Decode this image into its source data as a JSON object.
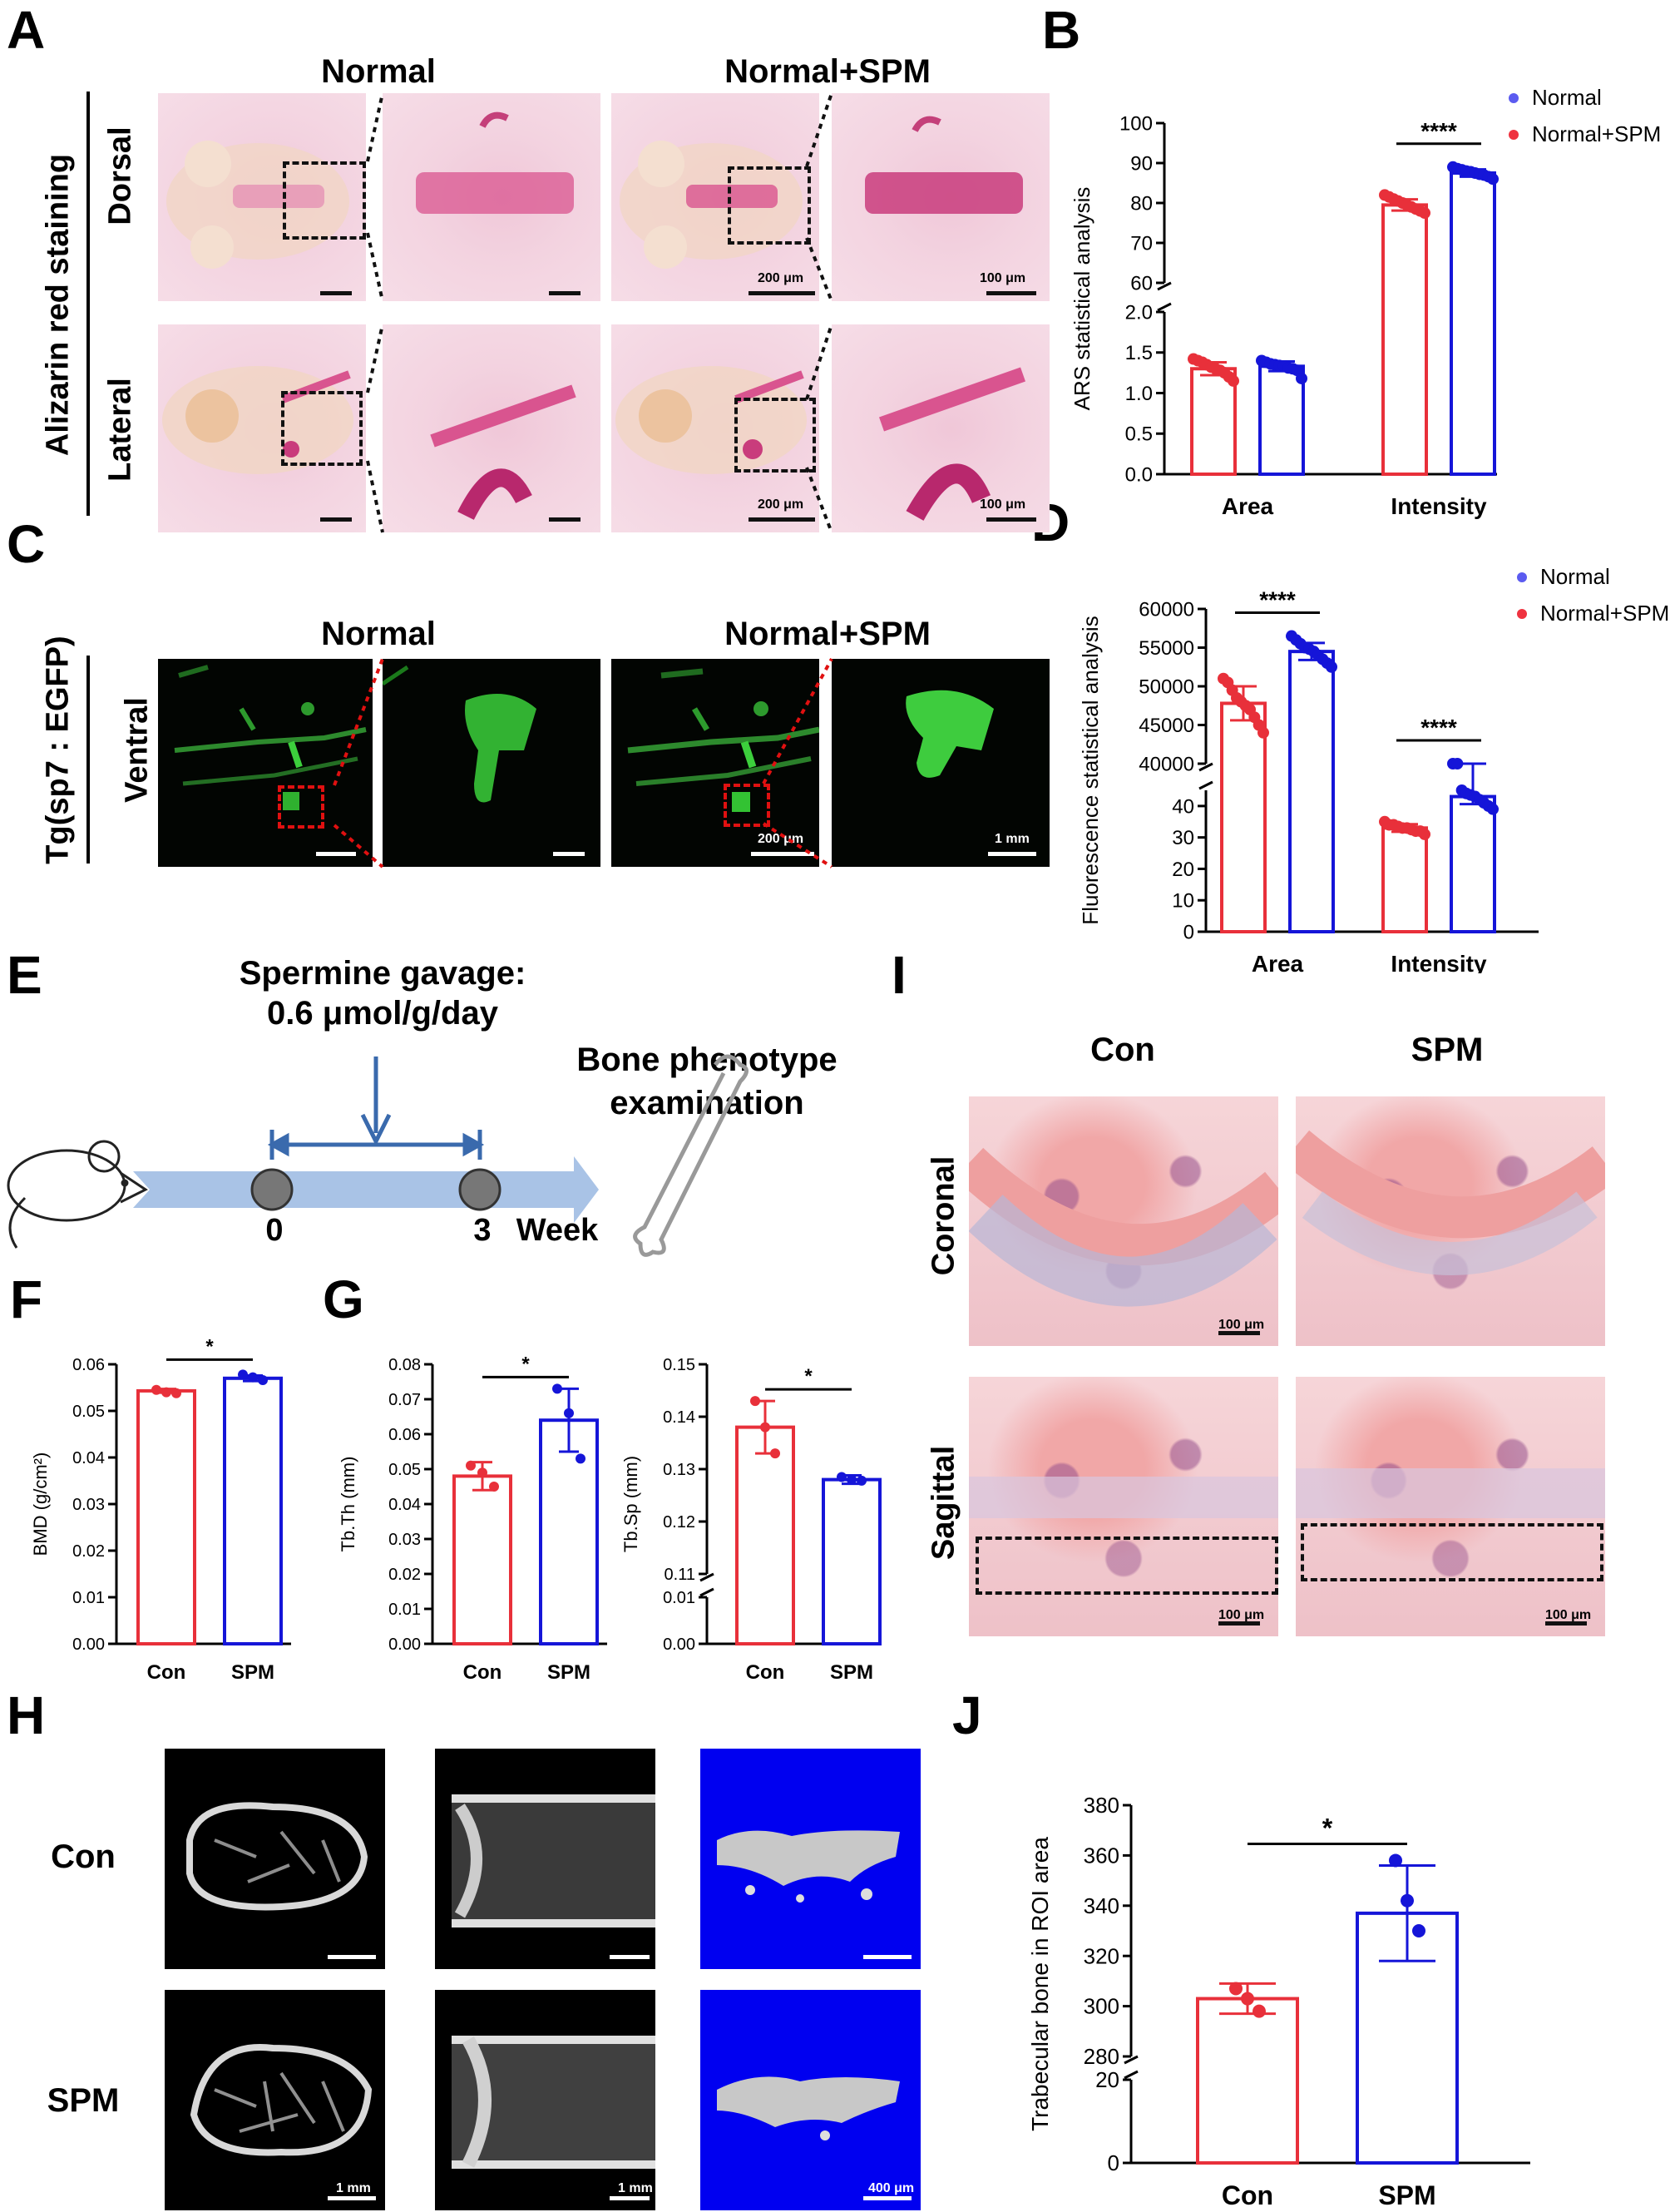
{
  "panels": {
    "A": "A",
    "B": "B",
    "C": "C",
    "D": "D",
    "E": "E",
    "F": "F",
    "G": "G",
    "H": "H",
    "I": "I",
    "J": "J"
  },
  "panel_a": {
    "col_normal": "Normal",
    "col_spm": "Normal+SPM",
    "row_side": "Alizarin red staining",
    "row_dorsal": "Dorsal",
    "row_lateral": "Lateral",
    "scale_200": "200 μm",
    "scale_100": "100 μm"
  },
  "panel_c": {
    "col_normal": "Normal",
    "col_spm": "Normal+SPM",
    "row_side": "Tg(sp7 : EGFP)",
    "row_ventral": "Ventral",
    "scale_200": "200 μm",
    "scale_1mm": "1 mm"
  },
  "panel_e": {
    "gavage_line1": "Spermine gavage:",
    "gavage_line2": "0.6 μmol/g/day",
    "exam_line1": "Bone phenotype",
    "exam_line2": "examination",
    "t0": "0",
    "t3": "3",
    "unit": "Week"
  },
  "panel_h": {
    "row_con": "Con",
    "row_spm": "SPM",
    "scale_1mm": "1 mm",
    "scale_400": "400 μm"
  },
  "panel_i": {
    "col_con": "Con",
    "col_spm": "SPM",
    "row_coronal": "Coronal",
    "row_sagittal": "Sagittal",
    "scale_100": "100 μm"
  },
  "colors": {
    "red": "#e8303a",
    "blue": "#1515d8",
    "legend_blue": "#5b5bf0",
    "legend_red": "#ef3340"
  },
  "chart_data": [
    {
      "id": "B",
      "type": "bar",
      "ylabel": "ARS statistical analysis",
      "categories": [
        "Area",
        "Intensity"
      ],
      "series": [
        {
          "name": "Normal",
          "values": [
            1.3,
            79.5
          ]
        },
        {
          "name": "Normal+SPM",
          "values": [
            1.33,
            87.5
          ]
        }
      ],
      "bar_series_order": [
        "Normal+SPM",
        "Normal"
      ],
      "points": {
        "Area": {
          "red": [
            1.42,
            1.4,
            1.38,
            1.35,
            1.32,
            1.3,
            1.28,
            1.25,
            1.2,
            1.15
          ],
          "blue": [
            1.4,
            1.38,
            1.36,
            1.35,
            1.34,
            1.33,
            1.31,
            1.3,
            1.28,
            1.18
          ]
        },
        "Intensity": {
          "red": [
            82.0,
            81.5,
            81.0,
            80.5,
            80.0,
            79.5,
            79.0,
            78.5,
            78.0,
            77.5
          ],
          "blue": [
            89.0,
            88.6,
            88.3,
            88.0,
            87.8,
            87.5,
            87.2,
            87.0,
            86.6,
            86.0
          ]
        }
      },
      "errors": {
        "Area": [
          0.08,
          0.06
        ],
        "Intensity": [
          1.4,
          0.9
        ]
      },
      "axis_lower": {
        "ticks": [
          "0.0",
          "0.5",
          "1.0",
          "1.5",
          "2.0"
        ],
        "ylim": [
          0,
          2
        ]
      },
      "axis_upper": {
        "ticks": [
          "60",
          "70",
          "80",
          "90",
          "100"
        ],
        "ylim": [
          60,
          100
        ]
      },
      "significance": [
        {
          "between": "Intensity",
          "label": "****"
        }
      ],
      "legend": [
        "Normal",
        "Normal+SPM"
      ],
      "legend_position": "top-right"
    },
    {
      "id": "D",
      "type": "bar",
      "ylabel": "Fluorescence statistical analysis",
      "categories": [
        "Area",
        "Intensity"
      ],
      "series": [
        {
          "name": "Normal",
          "values": [
            47800,
            33
          ]
        },
        {
          "name": "Normal+SPM",
          "values": [
            54500,
            43
          ]
        }
      ],
      "bar_series_order": [
        "Normal+SPM",
        "Normal"
      ],
      "points": {
        "Area": {
          "red": [
            51000,
            50500,
            49500,
            48500,
            48000,
            47500,
            47000,
            46000,
            45000,
            44000
          ],
          "blue": [
            56500,
            56000,
            55500,
            55000,
            54800,
            54500,
            54000,
            53500,
            53000,
            52500
          ]
        },
        "Intensity": {
          "red": [
            35,
            34,
            34,
            33.5,
            33,
            33,
            32.5,
            32,
            32,
            31
          ],
          "blue": [
            47,
            46,
            45,
            44,
            43.5,
            43,
            42,
            41,
            40,
            39
          ]
        }
      },
      "errors": {
        "Area": [
          2200,
          1100
        ],
        "Intensity": [
          1.2,
          2.4
        ]
      },
      "axis_lower": {
        "ticks": [
          "0",
          "10",
          "20",
          "30",
          "40"
        ],
        "ylim": [
          0,
          45
        ]
      },
      "axis_upper": {
        "ticks": [
          "40000",
          "45000",
          "50000",
          "55000",
          "60000"
        ],
        "ylim": [
          40000,
          60000
        ]
      },
      "significance": [
        {
          "between": "Area",
          "label": "****"
        },
        {
          "between": "Intensity",
          "label": "****"
        }
      ],
      "legend": [
        "Normal",
        "Normal+SPM"
      ],
      "legend_position": "top-right"
    },
    {
      "id": "F",
      "type": "bar",
      "ylabel": "BMD (g/cm²)",
      "categories": [
        "Con",
        "SPM"
      ],
      "values": [
        0.0543,
        0.057
      ],
      "points": [
        [
          0.0545,
          0.054,
          0.0538
        ],
        [
          0.0578,
          0.0572,
          0.0566
        ]
      ],
      "errors": [
        0.0004,
        0.0006
      ],
      "ticks": [
        "0.00",
        "0.01",
        "0.02",
        "0.03",
        "0.04",
        "0.05",
        "0.06"
      ],
      "ylim": [
        0,
        0.06
      ],
      "significance": "*"
    },
    {
      "id": "G1",
      "type": "bar",
      "ylabel": "Tb.Th (mm)",
      "categories": [
        "Con",
        "SPM"
      ],
      "values": [
        0.048,
        0.064
      ],
      "points": [
        [
          0.051,
          0.049,
          0.045
        ],
        [
          0.073,
          0.066,
          0.053
        ]
      ],
      "errors": [
        0.004,
        0.009
      ],
      "ticks": [
        "0.00",
        "0.01",
        "0.02",
        "0.03",
        "0.04",
        "0.05",
        "0.06",
        "0.07",
        "0.08"
      ],
      "ylim": [
        0,
        0.08
      ],
      "significance": "*"
    },
    {
      "id": "G2",
      "type": "bar",
      "ylabel": "Tb.Sp (mm)",
      "categories": [
        "Con",
        "SPM"
      ],
      "values": [
        0.138,
        0.128
      ],
      "points": [
        [
          0.143,
          0.138,
          0.133
        ],
        [
          0.1285,
          0.128,
          0.1278
        ]
      ],
      "errors": [
        0.005,
        0.0008
      ],
      "axis_lower": {
        "ticks": [
          "0.00",
          "0.01"
        ],
        "ylim": [
          0,
          0.01
        ]
      },
      "axis_upper": {
        "ticks": [
          "0.11",
          "0.12",
          "0.13",
          "0.14",
          "0.15"
        ],
        "ylim": [
          0.11,
          0.15
        ]
      },
      "significance": "*"
    },
    {
      "id": "J",
      "type": "bar",
      "ylabel": "Trabecular bone in ROI area",
      "categories": [
        "Con",
        "SPM"
      ],
      "values": [
        303,
        337
      ],
      "points": [
        [
          307,
          303,
          298
        ],
        [
          358,
          342,
          330
        ]
      ],
      "errors": [
        6,
        19
      ],
      "axis_lower": {
        "ticks": [
          "0",
          "20"
        ],
        "ylim": [
          0,
          20
        ]
      },
      "axis_upper": {
        "ticks": [
          "280",
          "300",
          "320",
          "340",
          "360",
          "380"
        ],
        "ylim": [
          280,
          380
        ]
      },
      "significance": "*"
    }
  ]
}
